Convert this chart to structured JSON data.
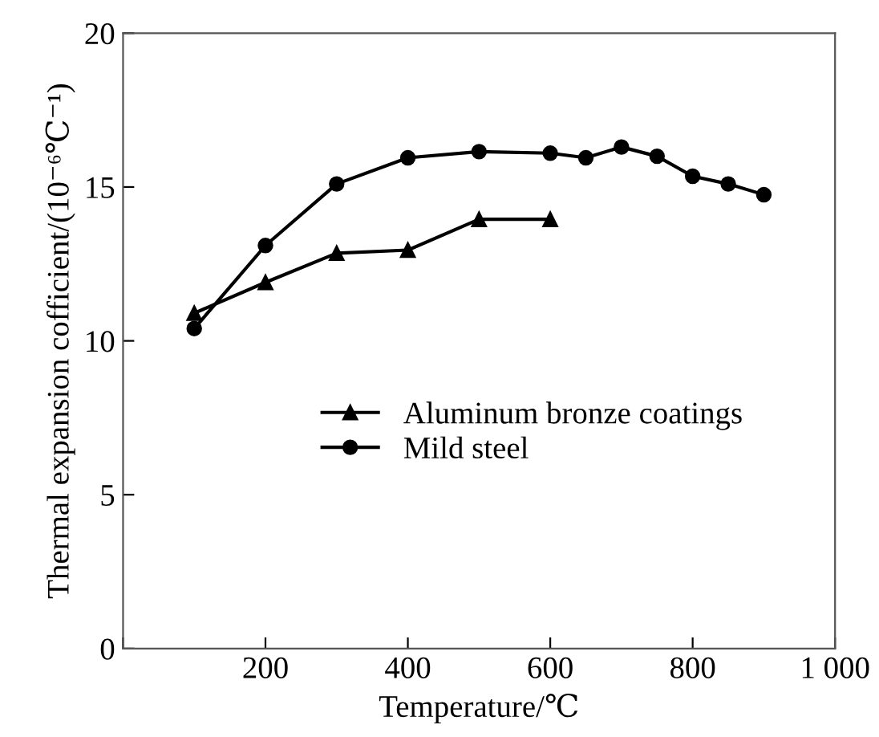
{
  "chart_data": {
    "type": "line",
    "xlabel": "Temperature/℃",
    "ylabel": "Thermal expansion cofficient/(10⁻⁶℃⁻¹)",
    "xlim": [
      0,
      1000
    ],
    "ylim": [
      0,
      20
    ],
    "xticks": [
      {
        "value": 0,
        "label": null
      },
      200,
      400,
      600,
      800,
      {
        "value": 1000,
        "label": "1 000"
      }
    ],
    "yticks": [
      0,
      5,
      10,
      15,
      20
    ],
    "grid": false,
    "legend": "center",
    "line_style": "solid",
    "series": [
      {
        "name": "Aluminum bronze coatings",
        "color": "#000000",
        "marker": "triangle",
        "x": [
          100,
          200,
          300,
          400,
          500,
          600
        ],
        "values": [
          10.9,
          11.9,
          12.85,
          12.95,
          13.95,
          13.95
        ]
      },
      {
        "name": "Mild steel",
        "color": "#000000",
        "marker": "circle",
        "x": [
          100,
          200,
          300,
          400,
          500,
          600,
          650,
          700,
          750,
          800,
          850,
          900
        ],
        "values": [
          10.4,
          13.1,
          15.1,
          15.95,
          16.15,
          16.1,
          15.95,
          16.3,
          16.0,
          15.35,
          15.1,
          14.75
        ]
      }
    ]
  }
}
